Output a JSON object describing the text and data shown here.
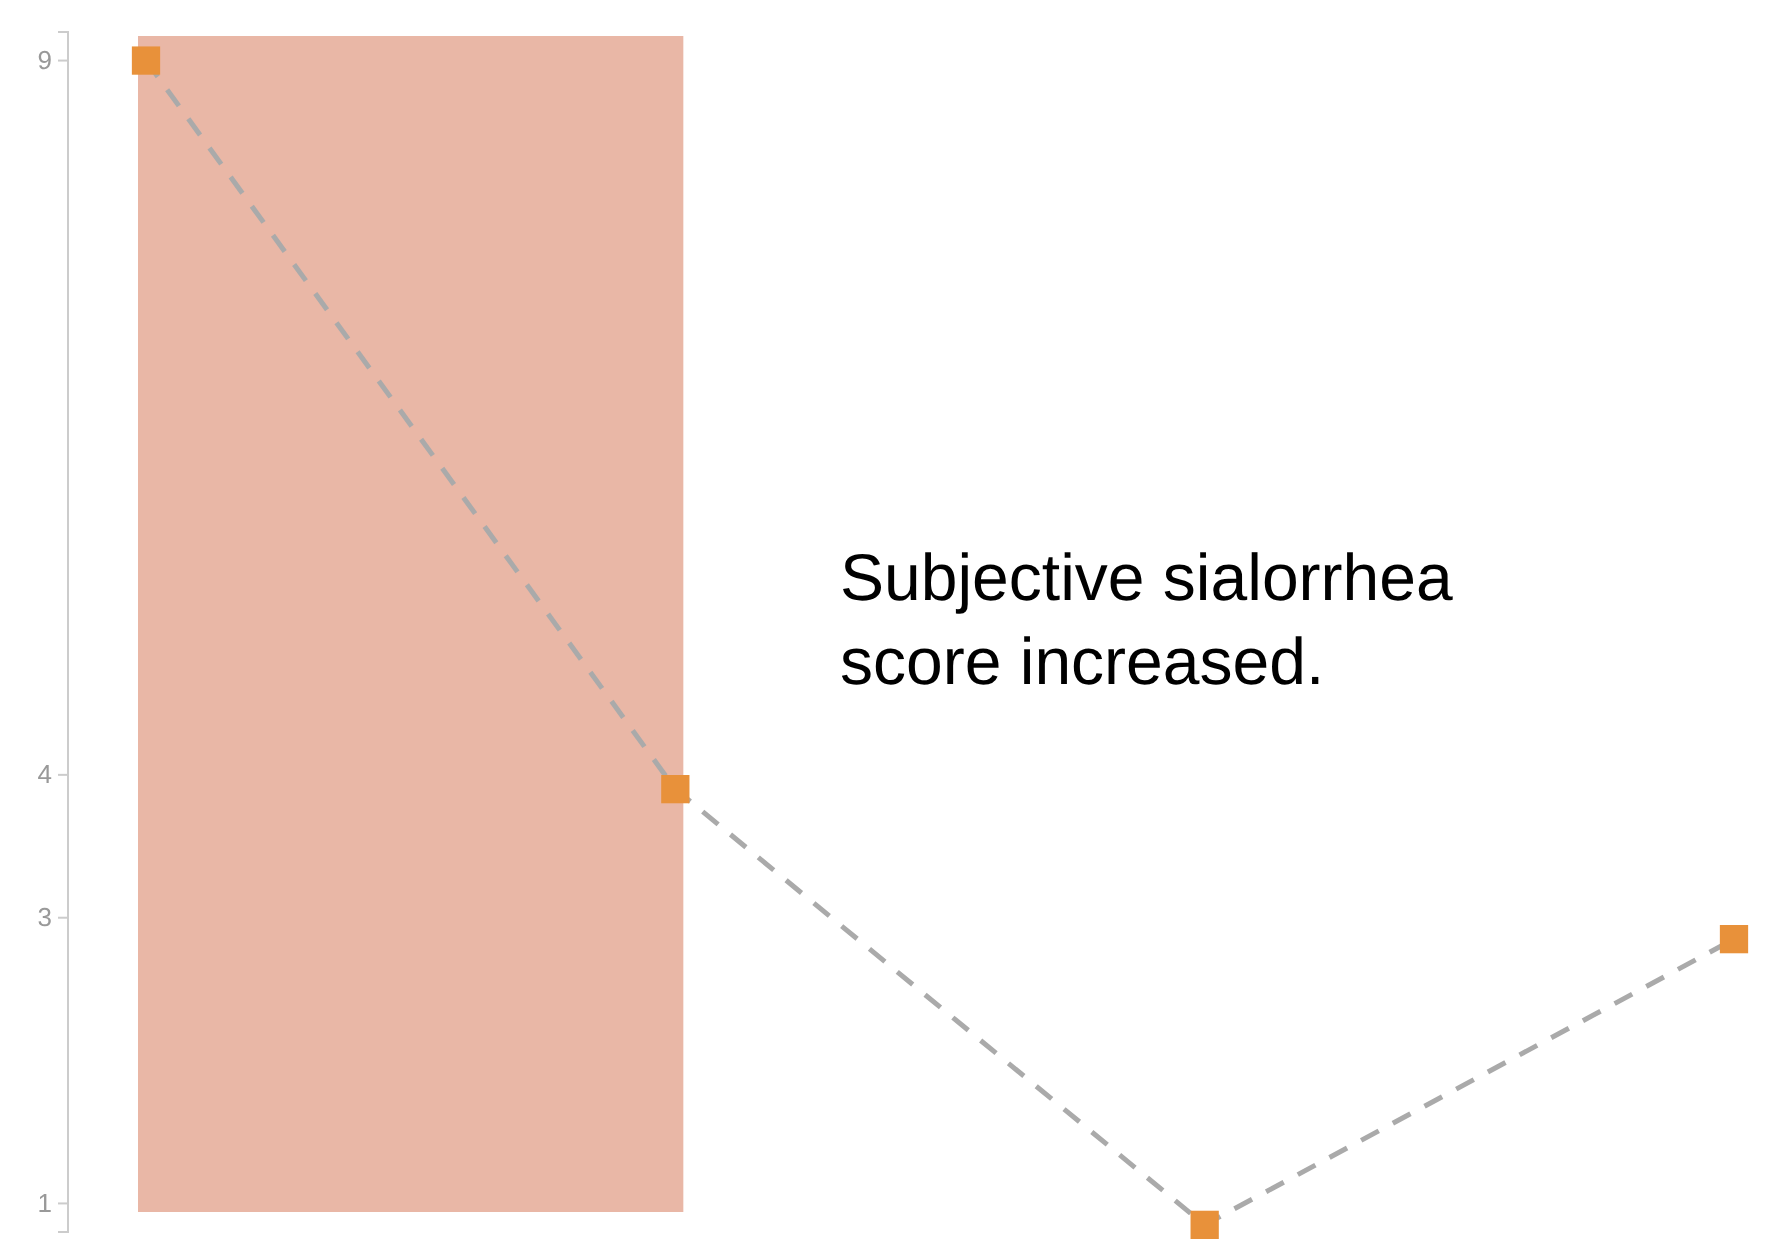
{
  "chart_data": {
    "type": "line",
    "categories": [
      null,
      null,
      null,
      null
    ],
    "series": [
      {
        "color": "#aaaaaa",
        "colors": [
          "#e8913a",
          "#e8913a",
          "#e8913a",
          "#e8913a"
        ],
        "values": [
          9,
          3.9,
          0.85,
          2.85
        ]
      }
    ],
    "ylim": [
      0.8,
      9.2
    ],
    "yticks": [
      1,
      3,
      4,
      9
    ],
    "tick_labels": "y",
    "marker": "square",
    "line_style": "dashed",
    "annotations": [
      "Subjective sialorrhea score increased."
    ]
  }
}
